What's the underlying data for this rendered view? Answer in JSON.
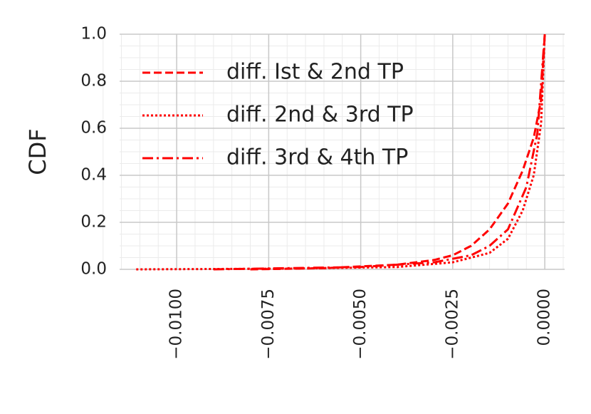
{
  "chart_data": {
    "type": "line",
    "y_label": "CDF",
    "xlim": [
      -0.01155,
      0.00054
    ],
    "ylim": [
      0,
      1
    ],
    "xticks": [
      {
        "value": -0.01,
        "label": "−0.0100"
      },
      {
        "value": -0.0075,
        "label": "−0.0075"
      },
      {
        "value": -0.005,
        "label": "−0.0050"
      },
      {
        "value": -0.0025,
        "label": "−0.0025"
      },
      {
        "value": 0,
        "label": "0.0000"
      }
    ],
    "yticks": [
      {
        "value": 0,
        "label": "0.0"
      },
      0.2,
      0.4,
      0.6,
      0.8,
      {
        "value": 1,
        "label": "1.0"
      }
    ],
    "grid": true,
    "minor_grid": true,
    "legend": "upper left",
    "series": [
      {
        "name": "diff. Ist & 2nd TP",
        "color": "#ff0000",
        "linestyle": "dashed",
        "x": [
          -0.008,
          -0.006,
          -0.004,
          -0.003,
          -0.0025,
          -0.002,
          -0.0015,
          -0.001,
          -0.0006,
          -0.0003,
          -0.0001,
          0
        ],
        "values": [
          0,
          0.005,
          0.02,
          0.04,
          0.06,
          0.1,
          0.17,
          0.28,
          0.42,
          0.56,
          0.72,
          1.0
        ]
      },
      {
        "name": "diff. 2nd & 3rd TP",
        "color": "#ff0000",
        "linestyle": "dotted",
        "x": [
          -0.0111,
          -0.007,
          -0.004,
          -0.0025,
          -0.0015,
          -0.001,
          -0.0006,
          -0.0003,
          -0.0001,
          0
        ],
        "values": [
          0,
          0.003,
          0.01,
          0.03,
          0.07,
          0.13,
          0.25,
          0.4,
          0.62,
          1.0
        ]
      },
      {
        "name": "diff. 3rd & 4th TP",
        "color": "#ff0000",
        "linestyle": "dashdot",
        "x": [
          -0.009,
          -0.005,
          -0.003,
          -0.002,
          -0.0015,
          -0.001,
          -0.0005,
          -0.0002,
          0
        ],
        "values": [
          0,
          0.01,
          0.03,
          0.06,
          0.1,
          0.17,
          0.35,
          0.58,
          1.0
        ]
      }
    ]
  }
}
